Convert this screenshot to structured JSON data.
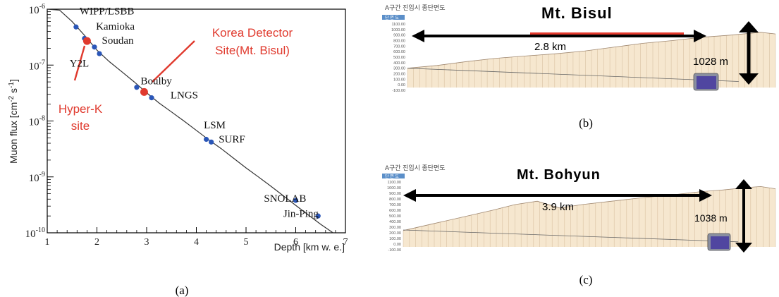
{
  "chart_data": [
    {
      "type": "scatter",
      "panel_label": "(a)",
      "xlabel": "Depth [km w. e.]",
      "ylabel": "Muon flux [cm⁻² s⁻¹]",
      "ylabel_parts": {
        "main": "Muon flux [cm",
        "exp1": "-2",
        "mid": " s",
        "exp2": "-1",
        "end": "]"
      },
      "xlim": [
        1,
        7
      ],
      "ylim": [
        1e-10,
        1e-06
      ],
      "yscale": "log",
      "xticks": [
        "1",
        "2",
        "3",
        "4",
        "5",
        "6",
        "7"
      ],
      "yticks": [
        {
          "value": 1e-10,
          "base": "10",
          "exp": "-10"
        },
        {
          "value": 1e-09,
          "base": "10",
          "exp": "-9"
        },
        {
          "value": 1e-08,
          "base": "10",
          "exp": "-8"
        },
        {
          "value": 1e-07,
          "base": "10",
          "exp": "-7"
        },
        {
          "value": 1e-06,
          "base": "10",
          "exp": "-6"
        }
      ],
      "curve": [
        [
          1.0,
          1.2e-06
        ],
        [
          1.25,
          9.6e-07
        ],
        [
          1.5,
          6e-07
        ],
        [
          1.75,
          3.4e-07
        ],
        [
          2.0,
          1.85e-07
        ],
        [
          2.25,
          1.15e-07
        ],
        [
          2.5,
          7.6e-08
        ],
        [
          2.75,
          5e-08
        ],
        [
          3.0,
          3.2e-08
        ],
        [
          3.25,
          2.1e-08
        ],
        [
          3.5,
          1.45e-08
        ],
        [
          3.75,
          1e-08
        ],
        [
          4.0,
          6.8e-09
        ],
        [
          4.25,
          4.6e-09
        ],
        [
          4.5,
          3.2e-09
        ],
        [
          4.75,
          2.15e-09
        ],
        [
          5.0,
          1.45e-09
        ],
        [
          5.25,
          1e-09
        ],
        [
          5.5,
          6.8e-10
        ],
        [
          5.75,
          4.6e-10
        ],
        [
          6.0,
          3.1e-10
        ],
        [
          6.25,
          2.1e-10
        ],
        [
          6.5,
          1.42e-10
        ],
        [
          6.75,
          1e-10
        ]
      ],
      "points": [
        {
          "name": "WIPP/LSBB",
          "x": 1.58,
          "y": 4.8e-07,
          "color": "#2a56b8"
        },
        {
          "name": "Kamioka",
          "x": 1.95,
          "y": 2.1e-07,
          "color": "#2a56b8"
        },
        {
          "name": "Soudan",
          "x": 2.05,
          "y": 1.6e-07,
          "color": "#2a56b8"
        },
        {
          "name": "Y2L",
          "x": 1.75,
          "y": 3e-07,
          "color": "#2a56b8"
        },
        {
          "name": "Boulby",
          "x": 2.8,
          "y": 4e-08,
          "color": "#2a56b8"
        },
        {
          "name": "LNGS",
          "x": 3.1,
          "y": 2.6e-08,
          "color": "#2a56b8"
        },
        {
          "name": "LSM",
          "x": 4.2,
          "y": 4.7e-09,
          "color": "#2a56b8"
        },
        {
          "name": "SURF",
          "x": 4.3,
          "y": 4.2e-09,
          "color": "#2a56b8"
        },
        {
          "name": "SNOLAB",
          "x": 6.0,
          "y": 3.8e-10,
          "color": "#2a56b8"
        },
        {
          "name": "Jin-Ping",
          "x": 6.45,
          "y": 2e-10,
          "color": "#2a56b8"
        },
        {
          "name": "Hyper-K site",
          "x": 1.8,
          "y": 2.7e-07,
          "color": "#e03a2e"
        },
        {
          "name": "Korea Detector Site (Mt. Bisul)",
          "x": 2.95,
          "y": 3.3e-08,
          "color": "#e03a2e"
        }
      ],
      "site_labels": [
        {
          "text": "WIPP/LSBB",
          "x": 1.65,
          "y": 8e-07
        },
        {
          "text": "Kamioka",
          "x": 1.98,
          "y": 4.3e-07
        },
        {
          "text": "Soudan",
          "x": 2.1,
          "y": 2.4e-07
        },
        {
          "text": "Y2L",
          "x": 1.45,
          "y": 9.3e-08
        },
        {
          "text": "Boulby",
          "x": 2.88,
          "y": 4.5e-08
        },
        {
          "text": "LNGS",
          "x": 3.48,
          "y": 2.55e-08
        },
        {
          "text": "LSM",
          "x": 4.15,
          "y": 7.4e-09
        },
        {
          "text": "SURF",
          "x": 4.45,
          "y": 4.1e-09
        },
        {
          "text": "SNOLAB",
          "x": 5.36,
          "y": 3.6e-10
        },
        {
          "text": "Jin-Ping",
          "x": 5.75,
          "y": 1.92e-10
        }
      ],
      "annotations": [
        {
          "lines": [
            "Korea Detector",
            "Site(Mt. Bisul)"
          ],
          "color": "#e03a2e"
        },
        {
          "lines": [
            "Hyper-K",
            "site"
          ],
          "color": "#e03a2e"
        }
      ],
      "colors": {
        "site_point": "#2a56b8",
        "highlight": "#e03a2e"
      }
    },
    {
      "type": "area",
      "panel_label": "(b)",
      "header_text": "A구간 진입시 종단면도",
      "legend_text": "단 면 도",
      "mountain": "Mt. Bisul",
      "distance_label": "2.8 km",
      "height_label": "1028 m",
      "yticks": [
        "1100.00",
        "1000.00",
        "900.00",
        "800.00",
        "700.00",
        "600.00",
        "500.00",
        "400.00",
        "300.00",
        "200.00",
        "100.00",
        "0.00",
        "-100.00"
      ],
      "ylim": [
        -100,
        1100
      ],
      "profile_x": [
        0,
        0.08,
        0.16,
        0.24,
        0.32,
        0.4,
        0.48,
        0.56,
        0.64,
        0.72,
        0.8,
        0.88,
        0.96,
        1.0
      ],
      "profile_y": [
        300,
        350,
        420,
        480,
        520,
        560,
        610,
        680,
        750,
        800,
        860,
        900,
        950,
        920
      ],
      "tunnel_y": [
        300,
        60
      ]
    },
    {
      "type": "area",
      "panel_label": "(c)",
      "header_text": "A구간 진입시 종단면도",
      "legend_text": "단 면 도",
      "mountain": "Mt. Bohyun",
      "distance_label": "3.9 km",
      "height_label": "1038 m",
      "yticks": [
        "1100.00",
        "1000.00",
        "900.00",
        "800.00",
        "700.00",
        "600.00",
        "500.00",
        "400.00",
        "300.00",
        "200.00",
        "100.00",
        "0.00",
        "-100.00"
      ],
      "ylim": [
        -100,
        1100
      ],
      "profile_x": [
        0,
        0.08,
        0.16,
        0.24,
        0.3,
        0.36,
        0.42,
        0.48,
        0.56,
        0.64,
        0.72,
        0.8,
        0.86,
        0.92,
        0.96,
        1.0
      ],
      "profile_y": [
        240,
        360,
        480,
        600,
        700,
        760,
        640,
        700,
        760,
        820,
        870,
        930,
        960,
        1000,
        1020,
        980
      ],
      "tunnel_y": [
        250,
        40
      ]
    }
  ]
}
